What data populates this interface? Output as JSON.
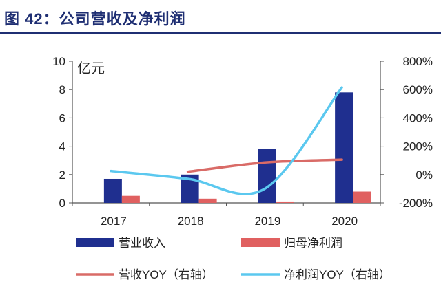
{
  "title": "图 42：公司营收及净利润",
  "chart_data": {
    "type": "bar",
    "categories": [
      "2017",
      "2018",
      "2019",
      "2020"
    ],
    "y_unit": "亿元",
    "ylim": [
      0,
      10
    ],
    "yticks": [
      "0",
      "2",
      "4",
      "6",
      "8",
      "10"
    ],
    "y2lim": [
      -200,
      800
    ],
    "y2ticks": [
      "-200%",
      "0%",
      "200%",
      "400%",
      "600%",
      "800%"
    ],
    "series": [
      {
        "name": "营业收入",
        "kind": "bar",
        "axis": "left",
        "color": "#1f2f8f",
        "values": [
          1.7,
          2.0,
          3.8,
          7.8
        ]
      },
      {
        "name": "归母净利润",
        "kind": "bar",
        "axis": "left",
        "color": "#e06060",
        "values": [
          0.5,
          0.3,
          0.1,
          0.8
        ]
      },
      {
        "name": "营收YOY（右轴）",
        "kind": "line",
        "axis": "right",
        "color": "#d96b67",
        "values": [
          null,
          20,
          85,
          105
        ]
      },
      {
        "name": "净利润YOY（右轴）",
        "kind": "line",
        "axis": "right",
        "color": "#5bc8ef",
        "values": [
          25,
          -30,
          -100,
          615
        ]
      }
    ],
    "legend_position": "bottom",
    "grid": false
  }
}
